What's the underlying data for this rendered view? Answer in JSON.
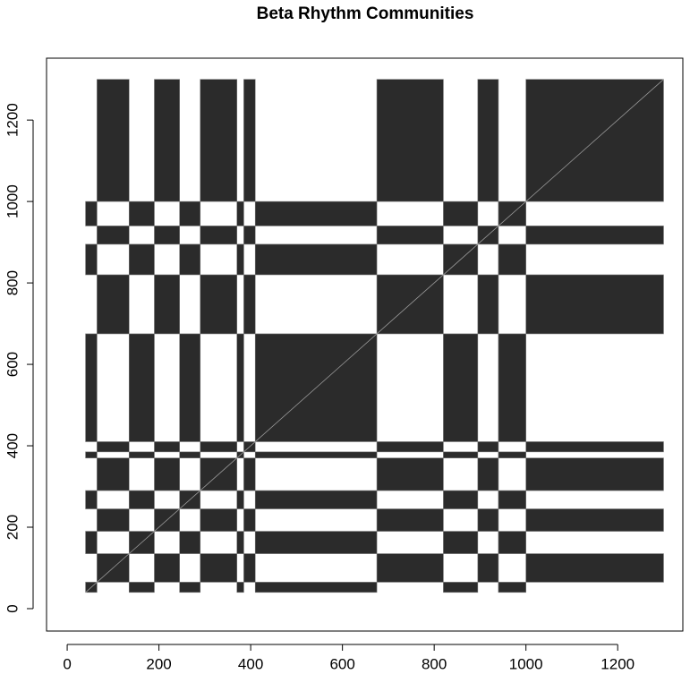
{
  "chart_data": {
    "type": "matrix",
    "title": "Beta Rhythm Communities",
    "segments": {
      "start": [
        40,
        65,
        135,
        190,
        245,
        290,
        370,
        385,
        410,
        675,
        820,
        895,
        940,
        1000
      ],
      "end": [
        65,
        135,
        190,
        245,
        290,
        370,
        385,
        410,
        675,
        820,
        895,
        940,
        1000,
        1300
      ],
      "community": [
        2,
        1,
        2,
        1,
        2,
        1,
        2,
        1,
        2,
        1,
        2,
        1,
        2,
        1
      ]
    },
    "color": "#2b2b2b",
    "xlim": [
      -45,
      1342
    ],
    "ylim": [
      -55,
      1352
    ],
    "xticks": [
      0,
      200,
      400,
      600,
      800,
      1000,
      1200
    ],
    "yticks": [
      0,
      200,
      400,
      600,
      800,
      1000,
      1200
    ]
  }
}
